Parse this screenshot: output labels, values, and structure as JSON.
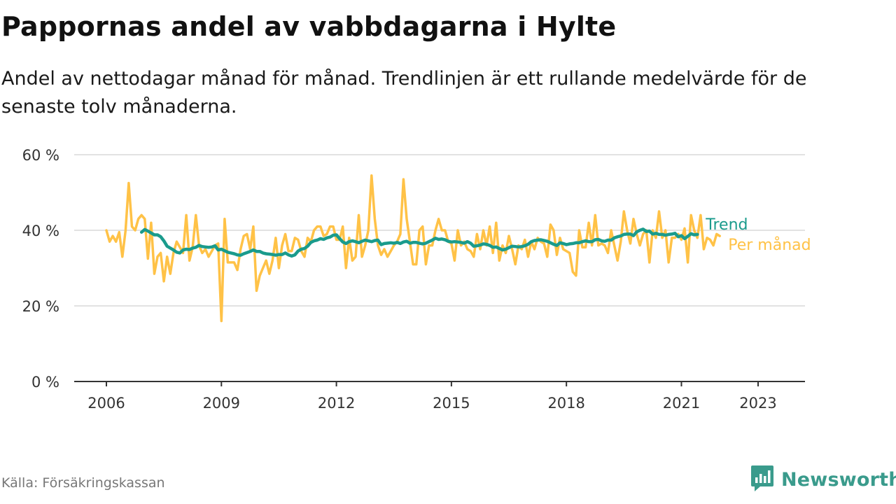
{
  "title": "Pappornas andel av vabbdagarna i Hylte",
  "subtitle": "Andel av nettodagar månad för månad. Trendlinjen är ett rullande medelvärde för de senaste tolv månaderna.",
  "source": "Källa: Försäkringskassan",
  "brand": "Newsworthy",
  "colors": {
    "trend": "#1a9b8c",
    "monthly": "#ffc247",
    "grid": "#d9d9d9",
    "axis": "#333333",
    "brand": "#3a9b8c"
  },
  "chart_data": {
    "type": "line",
    "x_unit": "year (month index, t = 2006.0 + m/12)",
    "ylim": [
      0,
      60
    ],
    "yticks": [
      0,
      20,
      40,
      60
    ],
    "ytick_labels": [
      "0 %",
      "20 %",
      "40 %",
      "60 %"
    ],
    "xticks": [
      2006,
      2009,
      2012,
      2015,
      2018,
      2021,
      2023
    ],
    "xtick_labels": [
      "2006",
      "2009",
      "2012",
      "2015",
      "2018",
      "2021",
      "2023"
    ],
    "grid": "horizontal",
    "legend_placement": "right end of lines",
    "series": [
      {
        "name": "Per månad",
        "color_key": "monthly",
        "start": 2006.0,
        "values": [
          40.0,
          37.0,
          38.5,
          37.0,
          39.5,
          33.0,
          40.0,
          52.5,
          41.0,
          40.0,
          43.0,
          44.0,
          43.0,
          32.5,
          42.0,
          28.5,
          33.0,
          34.0,
          26.5,
          33.0,
          28.5,
          34.0,
          37.0,
          35.5,
          34.0,
          44.0,
          32.0,
          35.5,
          44.0,
          36.0,
          34.0,
          35.0,
          33.0,
          34.5,
          36.0,
          36.5,
          16.0,
          43.0,
          31.5,
          31.5,
          31.5,
          29.5,
          35.0,
          38.5,
          39.0,
          35.0,
          41.0,
          24.0,
          28.0,
          30.0,
          32.0,
          28.5,
          32.0,
          38.0,
          30.0,
          36.0,
          39.0,
          34.5,
          34.5,
          38.0,
          37.5,
          34.5,
          33.0,
          38.0,
          37.0,
          40.0,
          41.0,
          41.0,
          38.5,
          39.0,
          41.0,
          41.0,
          37.5,
          37.5,
          41.0,
          30.0,
          38.0,
          32.0,
          33.0,
          44.0,
          33.0,
          36.0,
          40.0,
          54.5,
          43.0,
          36.0,
          33.5,
          35.0,
          33.0,
          34.5,
          36.0,
          37.0,
          39.0,
          53.5,
          43.0,
          37.0,
          31.0,
          31.0,
          40.0,
          41.0,
          31.0,
          36.0,
          36.0,
          40.0,
          43.0,
          40.0,
          40.0,
          37.0,
          36.5,
          32.0,
          40.0,
          36.0,
          37.0,
          35.0,
          34.5,
          33.0,
          39.0,
          35.0,
          40.0,
          36.0,
          41.0,
          34.0,
          42.0,
          32.0,
          36.0,
          34.0,
          38.5,
          35.0,
          31.0,
          36.0,
          35.0,
          37.5,
          33.0,
          37.0,
          35.0,
          38.0,
          37.0,
          36.5,
          33.0,
          41.5,
          40.0,
          33.5,
          38.0,
          35.0,
          34.5,
          34.0,
          29.0,
          28.0,
          40.0,
          35.5,
          35.5,
          42.0,
          36.0,
          44.0,
          36.0,
          36.5,
          36.0,
          34.0,
          40.0,
          36.0,
          32.0,
          37.0,
          45.0,
          40.0,
          36.5,
          43.0,
          39.0,
          36.0,
          39.0,
          40.0,
          31.5,
          40.0,
          38.0,
          45.0,
          38.0,
          40.0,
          31.5,
          38.0,
          38.0,
          39.0,
          37.5,
          40.5,
          31.5,
          44.0,
          40.0,
          38.0,
          44.0,
          35.0,
          38.0,
          37.5,
          36.0,
          39.0,
          38.5
        ],
        "end_label": "Per månad"
      },
      {
        "name": "Trend",
        "color_key": "trend",
        "start": 2006.9167,
        "values": [
          39.5,
          40.2,
          39.8,
          39.3,
          38.8,
          38.8,
          38.3,
          37.2,
          35.8,
          35.3,
          34.8,
          34.2,
          34.0,
          34.8,
          35.0,
          34.9,
          35.3,
          35.5,
          36.0,
          35.7,
          35.6,
          35.5,
          35.6,
          35.9,
          34.8,
          35.0,
          34.6,
          34.2,
          34.0,
          33.8,
          33.5,
          33.4,
          33.8,
          34.1,
          34.4,
          34.8,
          34.4,
          34.4,
          34.0,
          33.8,
          33.7,
          33.6,
          33.4,
          33.6,
          33.6,
          34.0,
          33.5,
          33.2,
          33.5,
          34.5,
          35.0,
          35.2,
          35.8,
          36.8,
          37.2,
          37.4,
          37.8,
          37.6,
          38.0,
          38.2,
          38.7,
          38.8,
          37.8,
          36.9,
          36.5,
          37.0,
          37.2,
          37.0,
          36.7,
          37.1,
          37.4,
          37.2,
          37.0,
          37.3,
          37.4,
          36.2,
          36.5,
          36.6,
          36.7,
          36.6,
          36.8,
          36.5,
          36.9,
          37.1,
          36.6,
          36.8,
          36.8,
          36.6,
          36.4,
          36.6,
          37.0,
          37.4,
          37.9,
          37.6,
          37.7,
          37.5,
          37.1,
          36.9,
          37.0,
          36.9,
          36.8,
          36.6,
          37.0,
          36.6,
          35.8,
          35.9,
          36.1,
          36.4,
          36.3,
          36.0,
          35.5,
          35.6,
          35.2,
          34.8,
          35.0,
          35.4,
          35.8,
          35.7,
          35.6,
          35.7,
          35.9,
          36.3,
          37.0,
          37.3,
          37.4,
          37.5,
          37.3,
          37.1,
          36.7,
          36.3,
          36.0,
          36.7,
          36.5,
          36.2,
          36.4,
          36.5,
          36.7,
          36.7,
          37.0,
          37.2,
          37.0,
          37.0,
          37.5,
          37.6,
          37.2,
          37.1,
          37.4,
          37.4,
          38.0,
          38.3,
          38.5,
          38.9,
          39.0,
          39.0,
          38.6,
          39.6,
          40.0,
          40.3,
          39.7,
          39.8,
          39.0,
          39.2,
          38.9,
          38.9,
          38.7,
          38.9,
          39.0,
          39.2,
          38.3,
          38.6,
          37.8,
          38.4,
          39.1,
          38.8,
          38.9
        ],
        "end_label": "Trend"
      }
    ]
  }
}
